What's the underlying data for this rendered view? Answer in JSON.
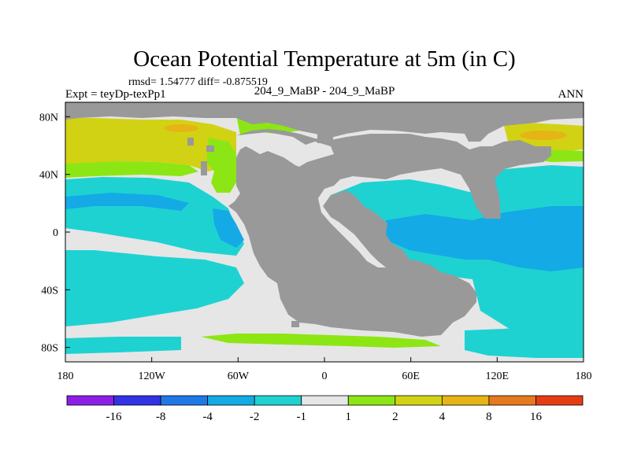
{
  "title": "Ocean Potential Temperature at 5m (in C)",
  "stats_line": "rmsd= 1.54777 diff= -0.875519",
  "case_line": "204_9_MaBP - 204_9_MaBP",
  "left_label": "Expt = teyDp-texPp1",
  "right_label": "ANN",
  "map": {
    "lon_range": [
      -180,
      180
    ],
    "lat_range": [
      -90,
      90
    ],
    "x_ticks": [
      {
        "lon": -180,
        "label": "180"
      },
      {
        "lon": -120,
        "label": "120W"
      },
      {
        "lon": -60,
        "label": "60W"
      },
      {
        "lon": 0,
        "label": "0"
      },
      {
        "lon": 60,
        "label": "60E"
      },
      {
        "lon": 120,
        "label": "120E"
      },
      {
        "lon": 180,
        "label": "180"
      }
    ],
    "y_ticks": [
      {
        "lat": 80,
        "label": "80N"
      },
      {
        "lat": 40,
        "label": "40N"
      },
      {
        "lat": 0,
        "label": "0"
      },
      {
        "lat": -40,
        "label": "40S"
      },
      {
        "lat": -80,
        "label": "80S"
      }
    ],
    "land_color": "#999999"
  },
  "colorbar": {
    "colors": [
      "#8c1ee6",
      "#3232e6",
      "#1e78e6",
      "#14aae6",
      "#1ed2d2",
      "#e6e6e6",
      "#8ce614",
      "#d2d214",
      "#e6b414",
      "#e6781e",
      "#e63c14"
    ],
    "labels": [
      "-16",
      "-8",
      "-4",
      "-2",
      "-1",
      "1",
      "2",
      "4",
      "8",
      "16"
    ]
  }
}
